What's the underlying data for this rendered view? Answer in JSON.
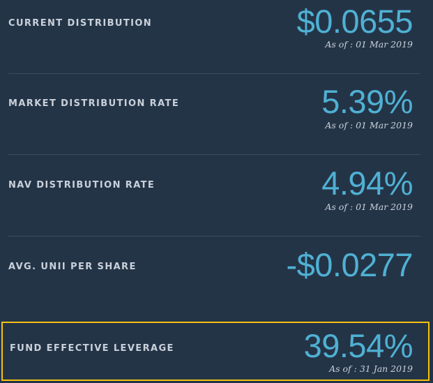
{
  "metrics": [
    {
      "label": "CURRENT DISTRIBUTION",
      "value": "$0.0655",
      "as_of": "As of : 01 Mar 2019"
    },
    {
      "label": "MARKET DISTRIBUTION RATE",
      "value": "5.39%",
      "as_of": "As of : 01 Mar 2019"
    },
    {
      "label": "NAV DISTRIBUTION RATE",
      "value": "4.94%",
      "as_of": "As of : 01 Mar 2019"
    },
    {
      "label": "AVG. UNII PER SHARE",
      "value": "-$0.0277"
    },
    {
      "label": "FUND EFFECTIVE LEVERAGE",
      "value": "39.54%",
      "as_of": "As of : 31 Jan 2019",
      "highlighted": true
    }
  ],
  "colors": {
    "background": "#243447",
    "value": "#4fb1d4",
    "label": "#c9d1da",
    "divider": "#3c4b5e",
    "highlight_border": "#f5c211"
  }
}
